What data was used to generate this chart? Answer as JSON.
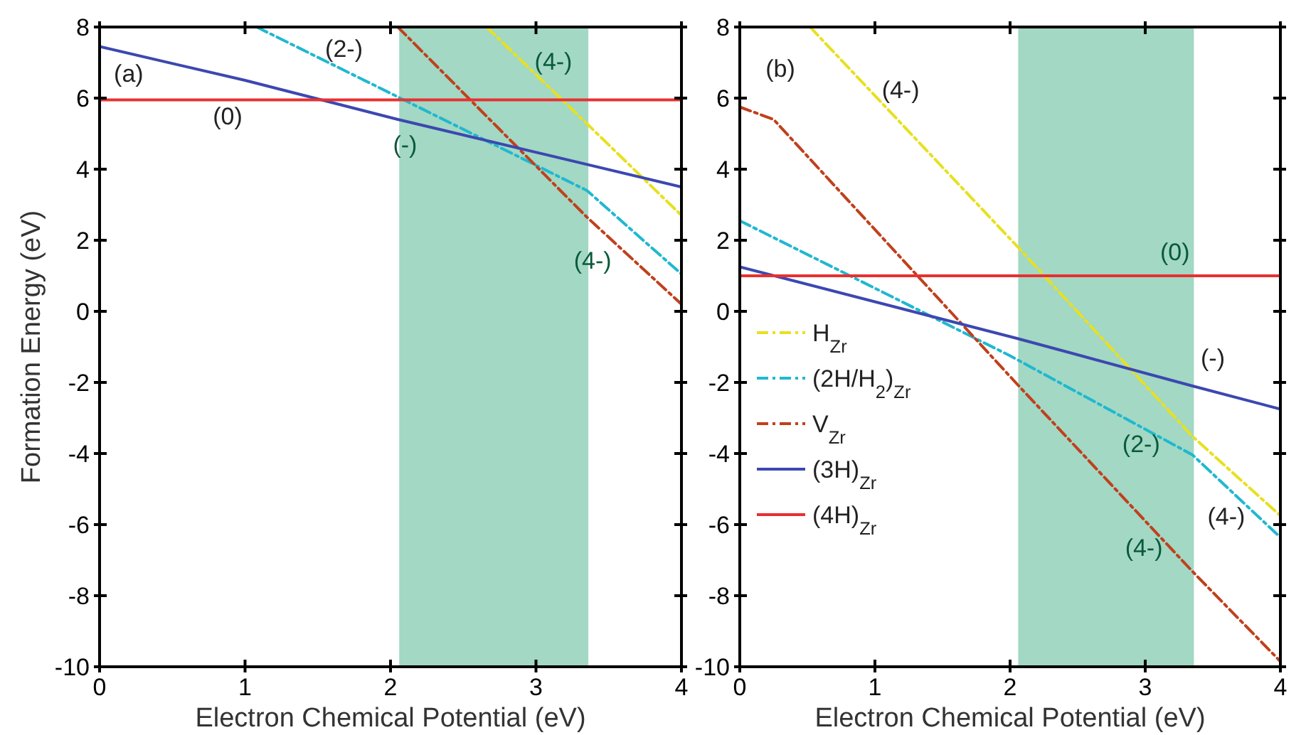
{
  "chart_data": [
    {
      "type": "line",
      "xlabel": "Electron Chemical Potential (eV)",
      "ylabel": "Formation Energy (eV)",
      "xlim": [
        0,
        4
      ],
      "ylim": [
        -10,
        8
      ],
      "xticks": [
        0,
        1,
        2,
        3,
        4
      ],
      "yticks": [
        -10,
        -8,
        -6,
        -4,
        -2,
        0,
        2,
        4,
        6,
        8
      ],
      "legend": false,
      "grid": false,
      "bands": [
        {
          "axis": "x",
          "from": 2.06,
          "to": 3.36,
          "color": "#a2d8c4"
        }
      ],
      "series": [
        {
          "color": "#e8e020",
          "line_style": "dashdot",
          "x": [
            2.66,
            3.35,
            4
          ],
          "values": [
            8,
            5.28,
            2.7
          ]
        },
        {
          "color": "#20b8d0",
          "line_style": "dashdot",
          "x": [
            1.08,
            3.35,
            4
          ],
          "values": [
            8,
            3.4,
            1.05
          ]
        },
        {
          "color": "#c0401c",
          "line_style": "dashdot",
          "x": [
            2.05,
            3.35,
            4
          ],
          "values": [
            8,
            2.65,
            0.2
          ]
        },
        {
          "color": "#3c48b0",
          "line_style": "solid",
          "x": [
            0,
            1,
            2.05,
            4
          ],
          "values": [
            7.45,
            6.5,
            5.4,
            3.5
          ]
        },
        {
          "color": "#e83030",
          "line_style": "solid",
          "x": [
            0,
            4
          ],
          "values": [
            5.95,
            5.95
          ]
        }
      ],
      "annotations": [
        "(a)",
        "(2-)",
        "(4-)",
        "(0)",
        "(-)",
        "(4-)"
      ]
    },
    {
      "type": "line",
      "xlabel": "Electron Chemical Potential (eV)",
      "xlim": [
        0,
        4
      ],
      "ylim": [
        -10,
        8
      ],
      "xticks": [
        0,
        1,
        2,
        3,
        4
      ],
      "yticks": [
        -10,
        -8,
        -6,
        -4,
        -2,
        0,
        2,
        4,
        6,
        8
      ],
      "legend": "left",
      "grid": false,
      "bands": [
        {
          "axis": "x",
          "from": 2.06,
          "to": 3.36,
          "color": "#a2d8c4"
        }
      ],
      "series": [
        {
          "name": "H$_{Zr}$",
          "color": "#e8e020",
          "line_style": "dashdot",
          "x": [
            0.52,
            2.05,
            3.35,
            4
          ],
          "values": [
            8,
            1.84,
            -3.52,
            -5.75
          ]
        },
        {
          "name": "(2H/H$_{2}$)$_{Zr}$",
          "color": "#20b8d0",
          "line_style": "dashdot",
          "x": [
            0,
            2,
            3.35,
            4
          ],
          "values": [
            2.55,
            -1.25,
            -4.04,
            -6.36
          ]
        },
        {
          "name": "V$_{Zr}$",
          "color": "#c0401c",
          "line_style": "dashdot",
          "x": [
            0,
            0.25,
            2.05,
            3.35,
            4
          ],
          "values": [
            5.75,
            5.4,
            -2.04,
            -7.32,
            -9.85
          ]
        },
        {
          "name": "(3H)$_{Zr}$",
          "color": "#3c48b0",
          "line_style": "solid",
          "x": [
            0,
            2.05,
            3.35,
            4
          ],
          "values": [
            1.25,
            -0.76,
            -2.1,
            -2.75
          ]
        },
        {
          "name": "(4H)$_{Zr}$",
          "color": "#e83030",
          "line_style": "solid",
          "x": [
            0,
            4
          ],
          "values": [
            1,
            1
          ]
        }
      ],
      "annotations": [
        "(b)",
        "(4-)",
        "(0)",
        "(-)",
        "(2-)",
        "(4-)",
        "(4-)"
      ]
    }
  ]
}
